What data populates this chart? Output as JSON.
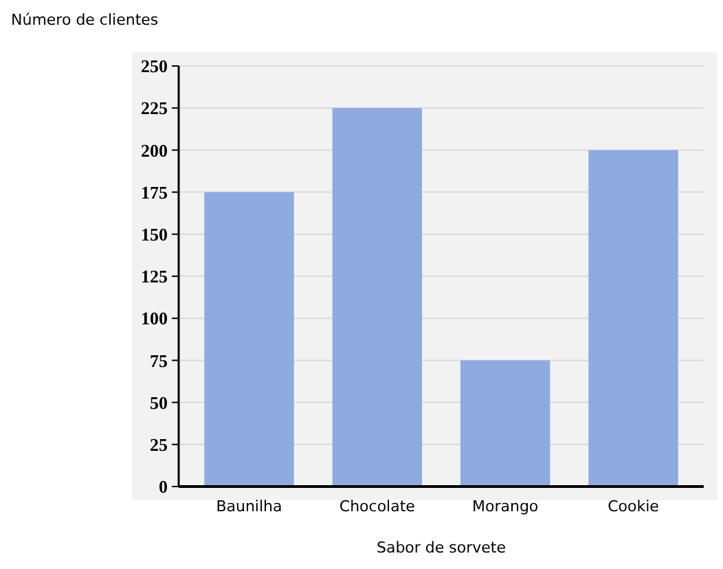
{
  "chart_data": {
    "type": "bar",
    "xlabel": "Sabor de sorvete",
    "ylabel": "Número de clientes",
    "categories": [
      "Baunilha",
      "Chocolate",
      "Morango",
      "Cookie"
    ],
    "values": [
      175,
      225,
      75,
      200
    ],
    "color": "#8faae0",
    "ylim": [
      0,
      250
    ],
    "yticks": [
      0,
      25,
      50,
      75,
      100,
      125,
      150,
      175,
      200,
      225,
      250
    ],
    "grid": "y"
  }
}
